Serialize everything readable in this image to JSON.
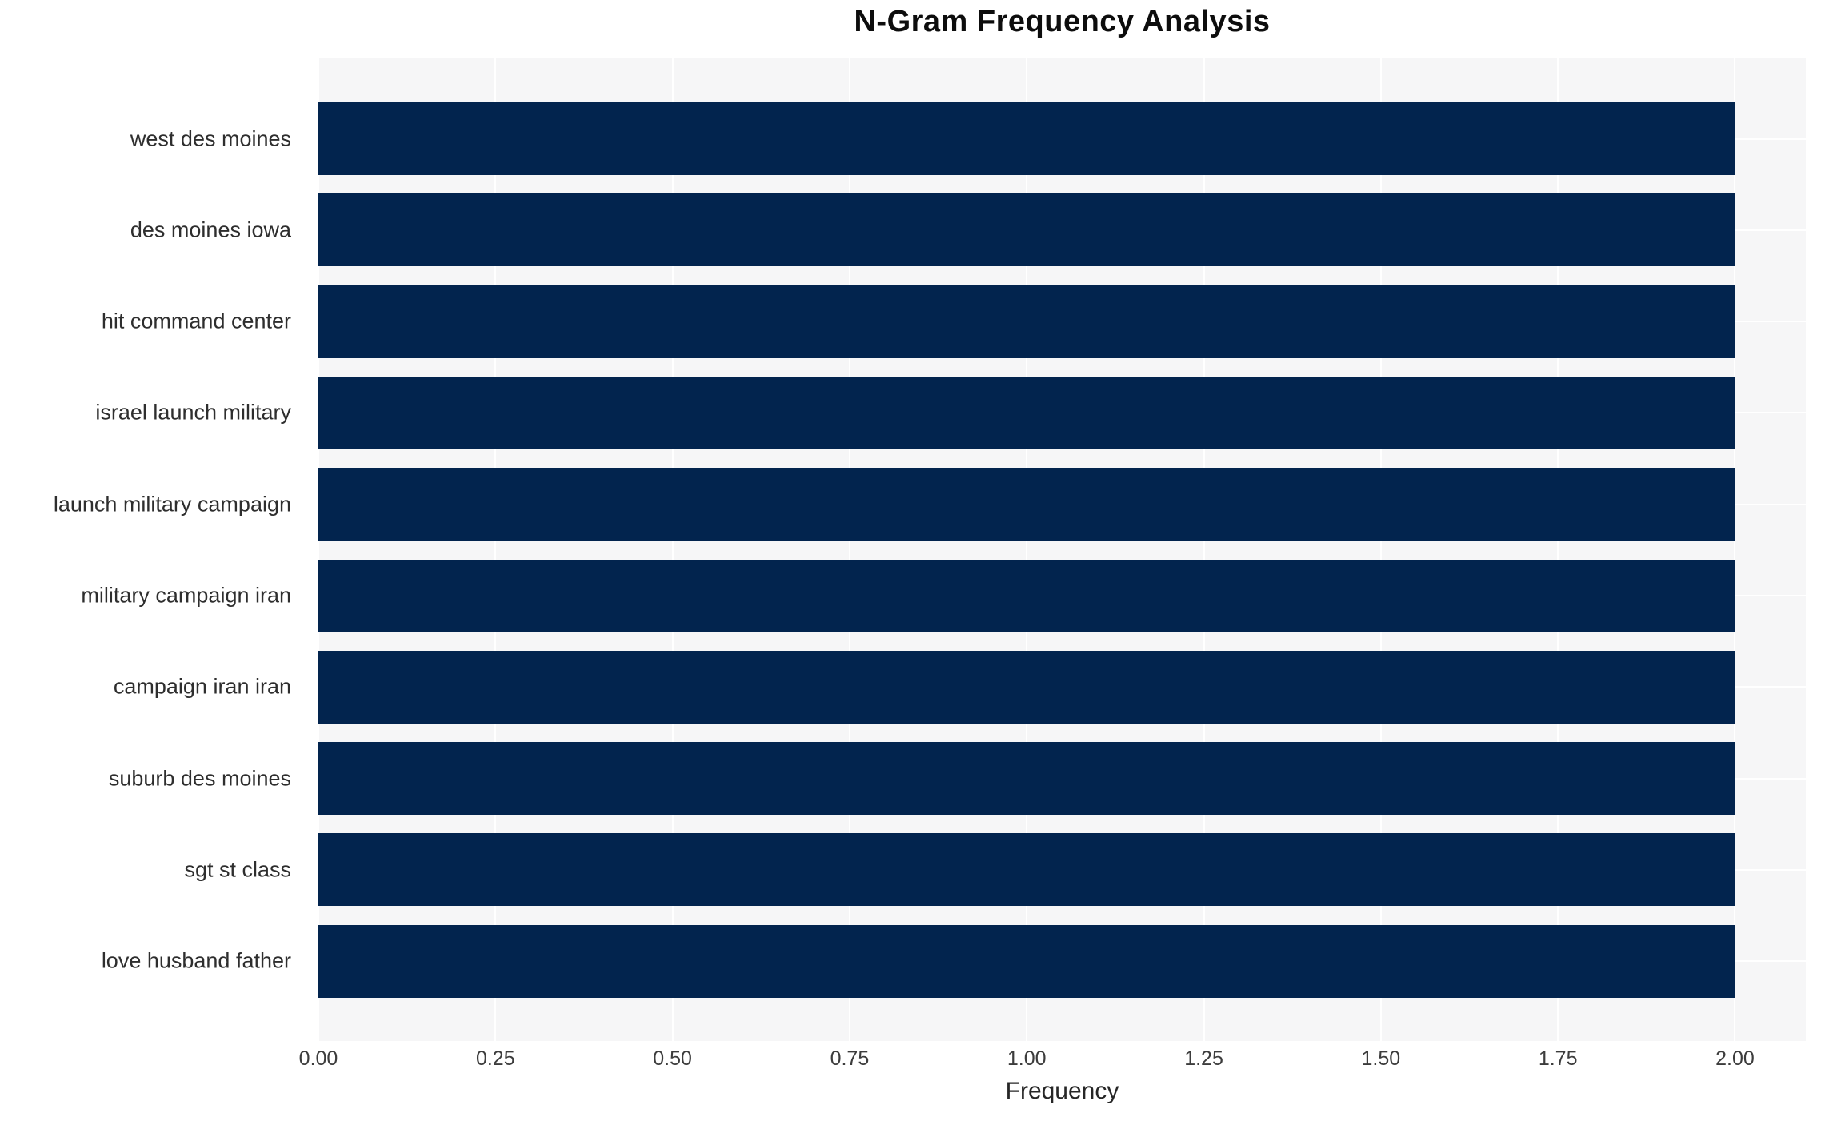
{
  "chart_data": {
    "type": "bar",
    "orientation": "horizontal",
    "title": "N-Gram Frequency Analysis",
    "xlabel": "Frequency",
    "ylabel": "",
    "categories": [
      "west des moines",
      "des moines iowa",
      "hit command center",
      "israel launch military",
      "launch military campaign",
      "military campaign iran",
      "campaign iran iran",
      "suburb des moines",
      "sgt st class",
      "love husband father"
    ],
    "values": [
      2,
      2,
      2,
      2,
      2,
      2,
      2,
      2,
      2,
      2
    ],
    "xlim": [
      0,
      2.1
    ],
    "xticks": [
      0,
      0.25,
      0.5,
      0.75,
      1.0,
      1.25,
      1.5,
      1.75,
      2.0
    ],
    "xtick_labels": [
      "0.00",
      "0.25",
      "0.50",
      "0.75",
      "1.00",
      "1.25",
      "1.50",
      "1.75",
      "2.00"
    ],
    "grid": "on",
    "legend": "none",
    "colors": {
      "bar": "#02244e",
      "plot_background": "#f6f6f7",
      "gridline": "#ffffff",
      "figure_background": "#ffffff",
      "title_text": "#0d0d0d",
      "label_text": "#2e2e2e"
    }
  }
}
